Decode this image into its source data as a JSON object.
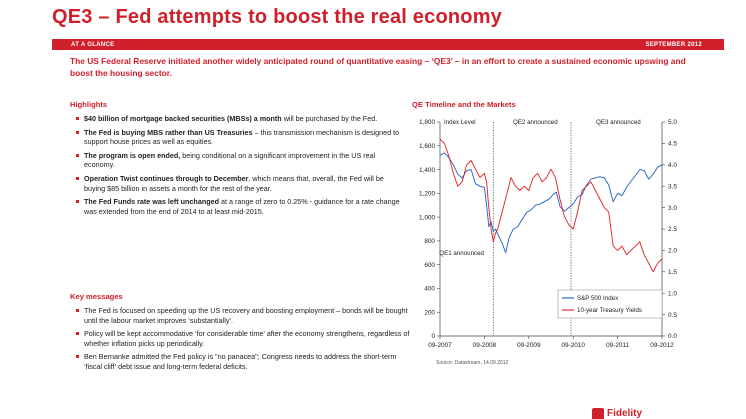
{
  "title": "QE3 – Fed attempts to boost the real economy",
  "banner": {
    "left": "AT A GLANCE",
    "right": "SEPTEMBER 2012"
  },
  "intro": "The US Federal Reserve initiated another widely anticipated round of quantitative easing – ‘QE3’ – in an effort to create a sustained economic upswing and boost the housing sector.",
  "highlights": {
    "heading": "Highlights",
    "items": [
      {
        "bold": "$40 billion of mortgage backed securities (MBSs) a month",
        "rest": " will be purchased by the Fed."
      },
      {
        "bold": "The Fed is buying MBS rather than US Treasuries",
        "rest": " – this transmission mechanism is designed to support house prices as well as equities."
      },
      {
        "bold": "The program is open ended,",
        "rest": " being conditional on a significant improvement in the US real economy."
      },
      {
        "bold": "Operation Twist continues through to December",
        "rest": ", which means that, overall, the Fed will be buying $85 billion in assets a month for the rest of the year."
      },
      {
        "bold": "The Fed Funds rate was left unchanged",
        "rest": " at a range of zero to 0.25% - guidance for a rate change was extended from the end of 2014 to at least mid-2015."
      }
    ]
  },
  "key_messages": {
    "heading": "Key messages",
    "items": [
      "The Fed is focused on speeding up the US recovery and boosting employment – bonds will be bought until the labour market improves ‘substantially’.",
      "Policy will be kept accommodative ‘for considerable time’ after the economy strengthens, regardless of whether inflation picks up periodically.",
      "Ben Bernanke admitted the Fed policy is \"no panacea\"; Congress needs to address the short-term ‘fiscal cliff’ debt issue and long-term federal deficits."
    ]
  },
  "chart_heading": "QE Timeline and the Markets",
  "source": "Source: Datastream, 14.09.2012",
  "logo_text": "Fidelity",
  "colors": {
    "accent": "#d0202b",
    "sp500": "#1f5fc8",
    "treasury": "#e01e1e"
  },
  "chart_data": {
    "type": "line",
    "title": "QE Timeline and the Markets",
    "x_tick_labels": [
      "09-2007",
      "09-2008",
      "09-2009",
      "09-2010",
      "09-2011",
      "09-2012"
    ],
    "x_range": [
      2007.7,
      2012.7
    ],
    "y_left": {
      "label": "Index Level",
      "range": [
        0,
        1800
      ],
      "ticks": [
        "0",
        "200",
        "400",
        "600",
        "800",
        "1,000",
        "1,200",
        "1,400",
        "1,600",
        "1,800"
      ]
    },
    "y_right": {
      "range": [
        0,
        5.0
      ],
      "ticks": [
        "0.0",
        "0.5",
        "1.0",
        "1.5",
        "2.0",
        "2.5",
        "3.0",
        "3.5",
        "4.0",
        "4.5",
        "5.0"
      ]
    },
    "annotations": [
      {
        "label": "QE1 announced",
        "x": 2008.9
      },
      {
        "label": "QE2 announced",
        "x": 2010.65
      },
      {
        "label": "QE3 announced",
        "x": 2012.7
      }
    ],
    "legend_position": "bottom-right",
    "series": [
      {
        "name": "S&P 500 Index",
        "axis": "left",
        "x": [
          2007.7,
          2007.8,
          2007.9,
          2008.0,
          2008.1,
          2008.2,
          2008.3,
          2008.4,
          2008.5,
          2008.6,
          2008.7,
          2008.75,
          2008.8,
          2008.85,
          2008.9,
          2008.95,
          2009.0,
          2009.1,
          2009.18,
          2009.25,
          2009.35,
          2009.45,
          2009.55,
          2009.65,
          2009.75,
          2009.85,
          2009.95,
          2010.05,
          2010.15,
          2010.25,
          2010.32,
          2010.4,
          2010.5,
          2010.6,
          2010.7,
          2010.8,
          2010.9,
          2011.0,
          2011.1,
          2011.2,
          2011.3,
          2011.4,
          2011.5,
          2011.55,
          2011.6,
          2011.7,
          2011.8,
          2011.9,
          2012.0,
          2012.1,
          2012.2,
          2012.3,
          2012.4,
          2012.5,
          2012.6,
          2012.7
        ],
        "values": [
          1520,
          1540,
          1500,
          1440,
          1360,
          1330,
          1390,
          1400,
          1280,
          1260,
          1250,
          1100,
          920,
          960,
          880,
          900,
          860,
          780,
          700,
          820,
          900,
          920,
          980,
          1040,
          1060,
          1100,
          1110,
          1130,
          1150,
          1190,
          1210,
          1090,
          1050,
          1080,
          1110,
          1170,
          1190,
          1270,
          1320,
          1330,
          1340,
          1330,
          1270,
          1200,
          1130,
          1200,
          1180,
          1250,
          1300,
          1350,
          1400,
          1390,
          1320,
          1360,
          1420,
          1440
        ]
      },
      {
        "name": "10-year Treasury Yields",
        "axis": "right",
        "x": [
          2007.7,
          2007.8,
          2007.9,
          2008.0,
          2008.1,
          2008.2,
          2008.3,
          2008.4,
          2008.5,
          2008.6,
          2008.7,
          2008.75,
          2008.8,
          2008.85,
          2008.9,
          2008.95,
          2009.0,
          2009.1,
          2009.2,
          2009.3,
          2009.4,
          2009.5,
          2009.6,
          2009.7,
          2009.8,
          2009.9,
          2010.0,
          2010.1,
          2010.2,
          2010.3,
          2010.4,
          2010.5,
          2010.6,
          2010.7,
          2010.8,
          2010.9,
          2011.0,
          2011.1,
          2011.2,
          2011.3,
          2011.4,
          2011.5,
          2011.6,
          2011.7,
          2011.8,
          2011.9,
          2012.0,
          2012.1,
          2012.2,
          2012.3,
          2012.4,
          2012.5,
          2012.6,
          2012.7
        ],
        "values": [
          4.6,
          4.5,
          4.2,
          3.8,
          3.5,
          3.6,
          4.0,
          4.1,
          3.9,
          3.7,
          3.8,
          3.6,
          3.0,
          2.5,
          2.2,
          2.4,
          2.5,
          2.9,
          3.3,
          3.7,
          3.5,
          3.4,
          3.5,
          3.4,
          3.7,
          3.8,
          3.6,
          3.7,
          3.9,
          3.7,
          3.2,
          2.8,
          2.6,
          2.5,
          2.9,
          3.4,
          3.5,
          3.6,
          3.4,
          3.2,
          3.0,
          2.9,
          2.1,
          2.0,
          2.1,
          1.9,
          2.0,
          2.1,
          2.2,
          1.9,
          1.7,
          1.5,
          1.7,
          1.8
        ]
      }
    ]
  }
}
